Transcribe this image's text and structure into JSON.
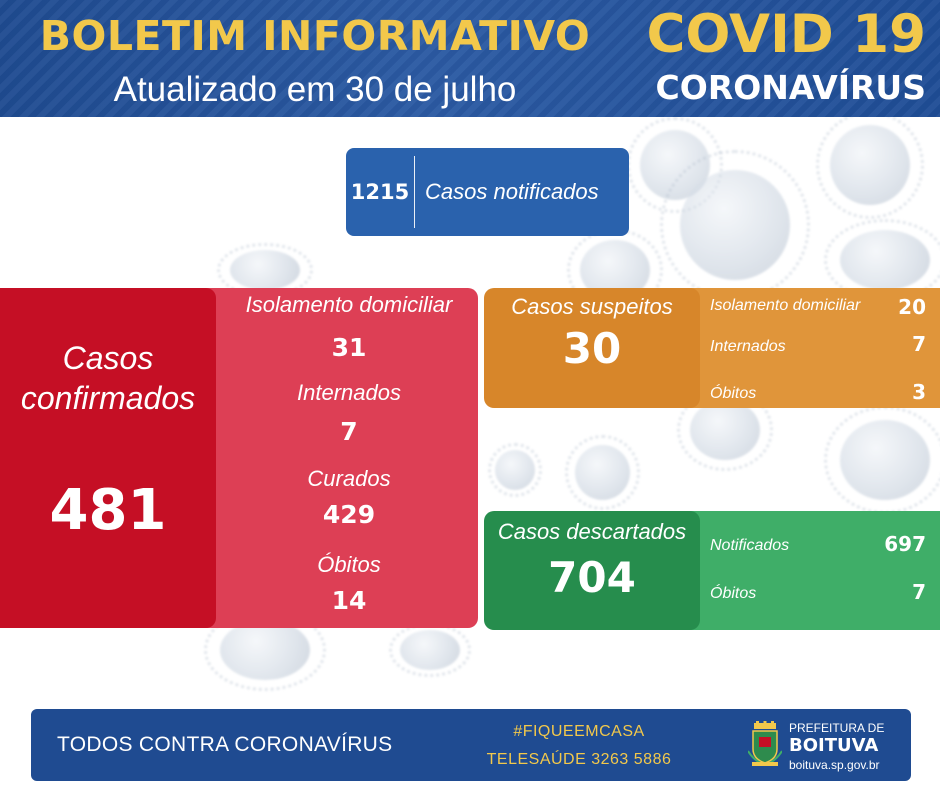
{
  "header": {
    "title": "BOLETIM INFORMATIVO",
    "subtitle": "Atualizado em 30 de julho",
    "covid": "COVID 19",
    "coronavirus": "CORONAVÍRUS"
  },
  "notified": {
    "value": "1215",
    "label": "Casos notificados"
  },
  "confirmed": {
    "label_line1": "Casos",
    "label_line2": "confirmados",
    "value": "481",
    "details": [
      {
        "label": "Isolamento domiciliar",
        "value": "31"
      },
      {
        "label": "Internados",
        "value": "7"
      },
      {
        "label": "Curados",
        "value": "429"
      },
      {
        "label": "Óbitos",
        "value": "14"
      }
    ]
  },
  "suspected": {
    "label": "Casos suspeitos",
    "value": "30",
    "details": [
      {
        "label": "Isolamento domiciliar",
        "value": "20"
      },
      {
        "label": "Internados",
        "value": "7"
      },
      {
        "label": "Óbitos",
        "value": "3"
      }
    ]
  },
  "discarded": {
    "label": "Casos descartados",
    "value": "704",
    "details": [
      {
        "label": "Notificados",
        "value": "697"
      },
      {
        "label": "Óbitos",
        "value": "7"
      }
    ]
  },
  "footer": {
    "slogan": "TODOS CONTRA CORONAVÍRUS",
    "hashtag": "#FIQUEEMCASA",
    "phone": "TELESAÚDE 3263 5886",
    "org_line1": "PREFEITURA DE",
    "org_line2": "BOITUVA",
    "org_site": "boituva.sp.gov.br"
  },
  "colors": {
    "header_blue": "#1f4b91",
    "accent_yellow": "#f2c84b",
    "confirmed_red": "#c50f25",
    "confirmed_detail": "#dd3f55",
    "suspected_orange": "#d7862a",
    "discarded_green": "#268d4d"
  }
}
